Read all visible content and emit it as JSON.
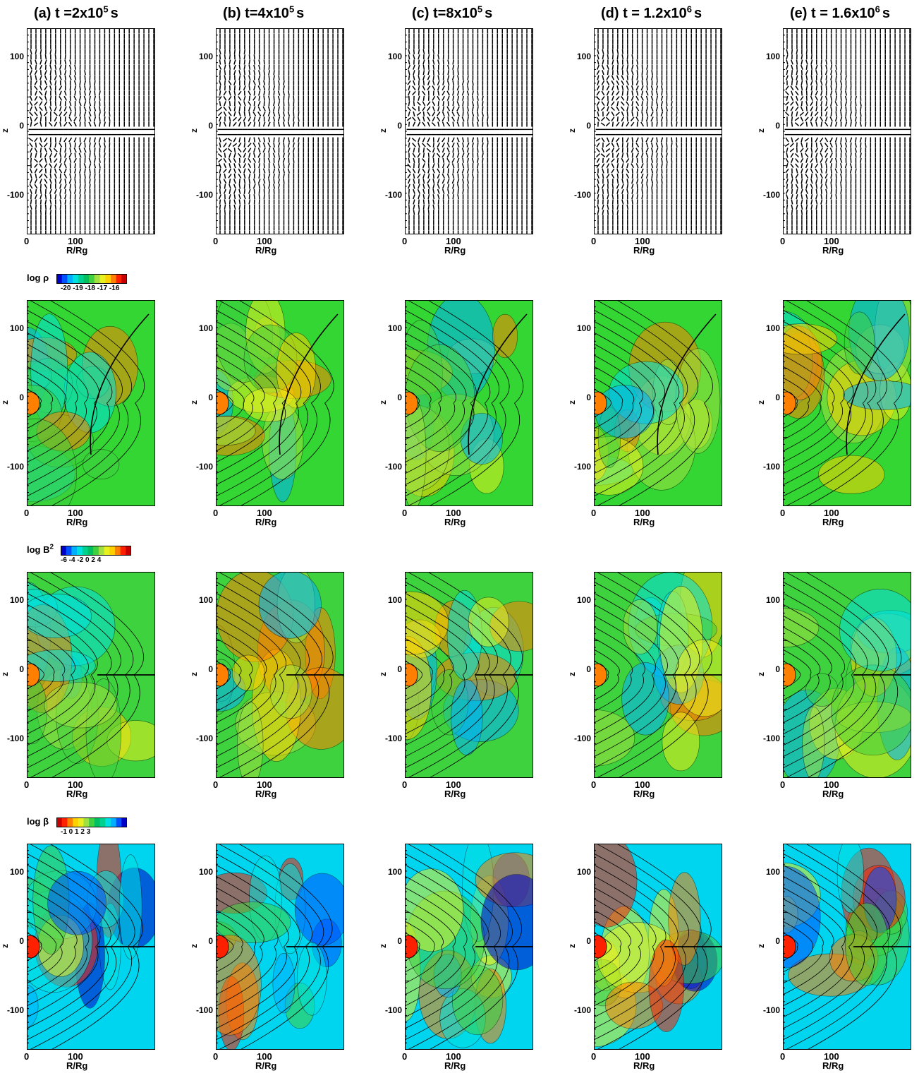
{
  "columns": [
    {
      "id": "a",
      "label": "(a)  t =2x10",
      "exp": "5",
      "unit": "s"
    },
    {
      "id": "b",
      "label": "(b)  t=4x10",
      "exp": "5",
      "unit": "s"
    },
    {
      "id": "c",
      "label": "(c) t=8x10",
      "exp": "5",
      "unit": "s"
    },
    {
      "id": "d",
      "label": "(d) t = 1.2x10",
      "exp": "6",
      "unit": "s"
    },
    {
      "id": "e",
      "label": "(e) t = 1.6x10",
      "exp": "6",
      "unit": "s"
    }
  ],
  "axes": {
    "xlabel": "R/Rg",
    "ylabel": "z",
    "x_ticks": [
      "0",
      "100"
    ],
    "y_ticks": [
      "100",
      "0",
      "-100"
    ]
  },
  "rows": [
    {
      "id": "vectors",
      "colorbar": null
    },
    {
      "id": "density",
      "colorbar": {
        "label": "log ρ",
        "label_sup": "",
        "ticks": "-20  -19  -18  -17  -16"
      }
    },
    {
      "id": "bfield",
      "colorbar": {
        "label": "log B",
        "label_sup": "2",
        "ticks": "-6 -4 -2  0  2  4"
      }
    },
    {
      "id": "beta",
      "colorbar": {
        "label": "log β",
        "label_sup": "",
        "ticks": "-1    0    1    2    3"
      }
    }
  ],
  "colors": {
    "jet": [
      "#0000c8",
      "#0050ff",
      "#00b0ff",
      "#00e0e0",
      "#00d090",
      "#00c060",
      "#40d040",
      "#a0e040",
      "#e8f020",
      "#ffd000",
      "#ff8000",
      "#ff2000",
      "#c80000"
    ],
    "density_bg": "#33d633",
    "bfield_bg": "#3fd23f",
    "beta_bg": "#00d5f0"
  }
}
